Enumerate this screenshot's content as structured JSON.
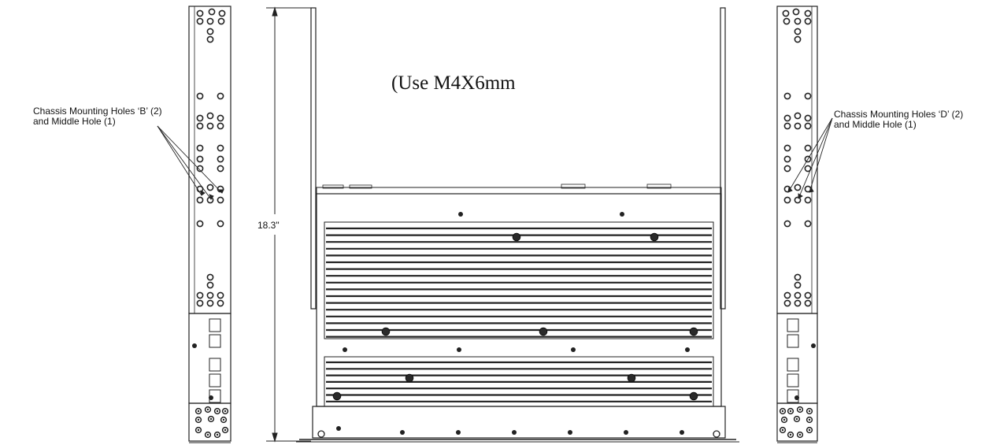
{
  "title_fragment": "(Use M4X6mm",
  "dimension": "18.3\"",
  "left_callout": {
    "line1": "Chassis Mounting Holes ‘B’ (2)",
    "line2": "and Middle Hole (1)"
  },
  "right_callout": {
    "line1": "Chassis Mounting Holes ‘D’ (2)",
    "line2": "and Middle Hole (1)"
  },
  "colors": {
    "stroke": "#222222",
    "fill_dark": "#2a2a2a",
    "background": "#ffffff"
  }
}
